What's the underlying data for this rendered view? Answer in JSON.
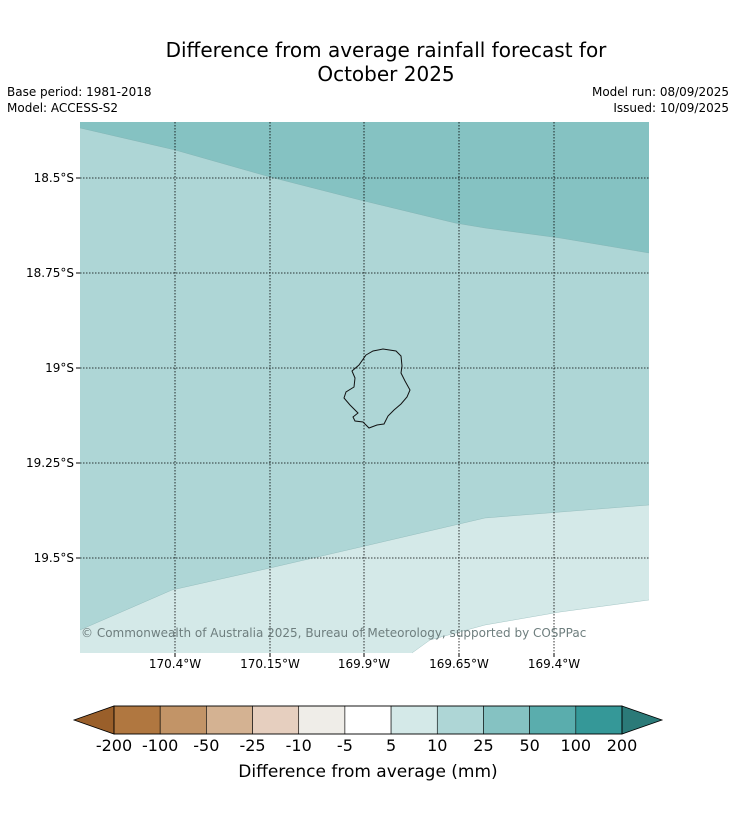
{
  "title": {
    "line1": "Difference from average rainfall forecast for",
    "line2": "October 2025"
  },
  "meta": {
    "base_period": "Base period: 1981-2018",
    "model": "Model: ACCESS-S2",
    "model_run": "Model run: 08/09/2025",
    "issued": "Issued: 10/09/2025"
  },
  "map": {
    "lat_labels": [
      "18.5°S",
      "18.75°S",
      "19°S",
      "19.25°S",
      "19.5°S"
    ],
    "lon_labels": [
      "170.4°W",
      "170.15°W",
      "169.9°W",
      "169.65°W",
      "169.4°W"
    ],
    "copyright": "© Commonwealth of Australia 2025, Bureau of Meteorology, supported by COSPPac",
    "region_colors": {
      "top": "#85c2c2",
      "middle": "#aed6d6",
      "lower": "#d4e9e8",
      "corner": "#ffffff"
    }
  },
  "colorbar": {
    "title": "Difference from average (mm)",
    "labels": [
      "-200",
      "-100",
      "-50",
      "-25",
      "-10",
      "-5",
      "5",
      "10",
      "25",
      "50",
      "100",
      "200"
    ],
    "under_color": "#9a5f2a",
    "over_color": "#2b7a78",
    "colors": [
      "#b07740",
      "#c29467",
      "#d4b292",
      "#e6cfbf",
      "#efede8",
      "#ffffff",
      "#d4e9e8",
      "#aed6d6",
      "#85c2c2",
      "#5aadad",
      "#359898"
    ]
  }
}
